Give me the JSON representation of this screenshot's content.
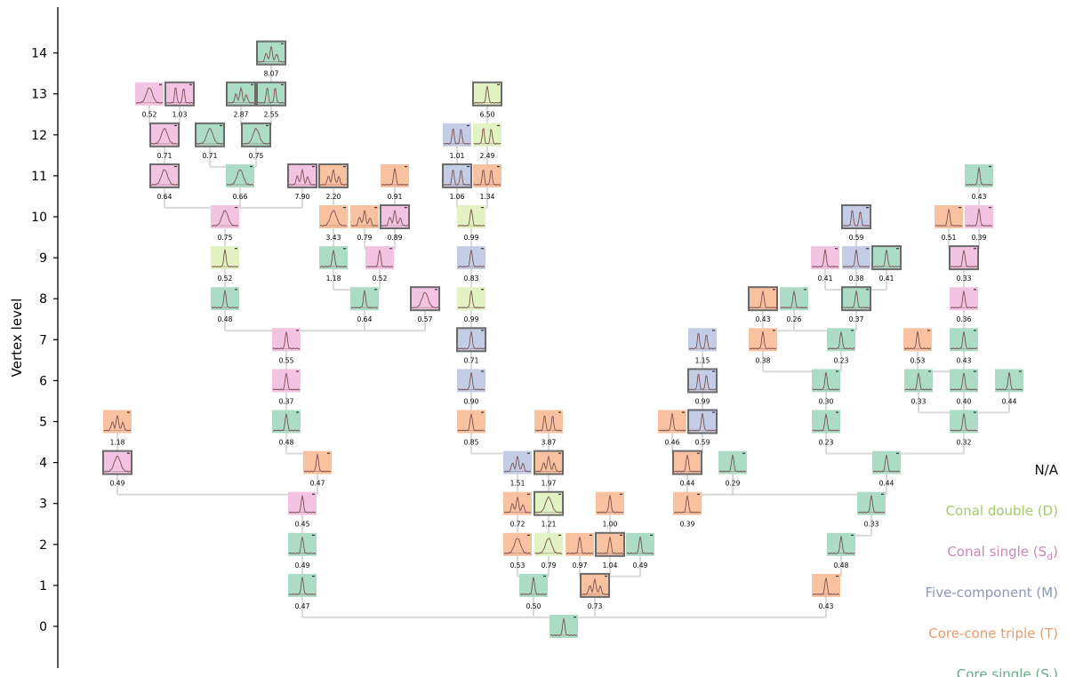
{
  "axis": {
    "ylabel": "Vertex level",
    "ticks": [
      "0",
      "1",
      "2",
      "3",
      "4",
      "5",
      "6",
      "7",
      "8",
      "9",
      "10",
      "11",
      "12",
      "13",
      "14"
    ]
  },
  "legend": [
    {
      "label": "N/A",
      "color": "#111111"
    },
    {
      "label": "Conal double (D)",
      "color": "#a6c96c"
    },
    {
      "label": "Conal single (S",
      "sub": "d",
      "tail": ")",
      "color": "#c987b5"
    },
    {
      "label": "Five-component (M)",
      "color": "#8c98bc"
    },
    {
      "label": "Core-cone triple (T)",
      "color": "#ef9a66"
    },
    {
      "label": "Core single (S",
      "sub": "t",
      "tail": ")",
      "color": "#62ad8c"
    }
  ],
  "colors": {
    "S": "#acdcc6",
    "T": "#f8c2a0",
    "M": "#c5cde6",
    "D": "#e2f2c2",
    "C": "#f3c3e2",
    "line": "#dadada",
    "profile": "#7a5050",
    "frame": "#6a6a6a"
  },
  "nodes": [
    {
      "id": "root",
      "lvl": 0,
      "t": "S"
    },
    {
      "id": "A",
      "lvl": 1,
      "t": "S",
      "val": "0.47",
      "p": "root"
    },
    {
      "id": "B",
      "lvl": 1,
      "t": "S",
      "val": "0.50",
      "p": "root"
    },
    {
      "id": "C",
      "lvl": 1,
      "t": "T",
      "val": "0.73",
      "p": "root",
      "f": 1,
      "shape": "multi"
    },
    {
      "id": "Dn",
      "lvl": 1,
      "t": "T",
      "val": "0.43",
      "p": "root"
    },
    {
      "id": "A2",
      "lvl": 2,
      "t": "S",
      "val": "0.49",
      "p": "A"
    },
    {
      "id": "A3",
      "lvl": 3,
      "t": "C",
      "val": "0.45",
      "p": "A2"
    },
    {
      "id": "A4",
      "lvl": 4,
      "t": "T",
      "val": "0.47",
      "p": "A3"
    },
    {
      "id": "L4",
      "lvl": 4,
      "t": "C",
      "val": "0.49",
      "p": "A3",
      "f": 1,
      "shape": "broad"
    },
    {
      "id": "L5",
      "lvl": 5,
      "t": "T",
      "val": "1.18",
      "p": "L4",
      "shape": "multi"
    },
    {
      "id": "A5",
      "lvl": 5,
      "t": "S",
      "val": "0.48",
      "p": "A4"
    },
    {
      "id": "A6",
      "lvl": 6,
      "t": "C",
      "val": "0.37",
      "p": "A5"
    },
    {
      "id": "A7",
      "lvl": 7,
      "t": "C",
      "val": "0.55",
      "p": "A6"
    },
    {
      "id": "A8",
      "lvl": 8,
      "t": "S",
      "val": "0.48",
      "p": "A7"
    },
    {
      "id": "A9",
      "lvl": 9,
      "t": "D",
      "val": "0.52",
      "p": "A8"
    },
    {
      "id": "A10",
      "lvl": 10,
      "t": "C",
      "val": "0.75",
      "p": "A9",
      "shape": "broad"
    },
    {
      "id": "A11a",
      "lvl": 11,
      "t": "C",
      "val": "0.64",
      "p": "A10",
      "f": 1,
      "shape": "broad"
    },
    {
      "id": "A11b",
      "lvl": 11,
      "t": "S",
      "val": "0.66",
      "p": "A10",
      "shape": "broad"
    },
    {
      "id": "A11c",
      "lvl": 11,
      "t": "C",
      "val": "7.90",
      "p": "A10",
      "f": 1,
      "shape": "multi"
    },
    {
      "id": "A12a",
      "lvl": 12,
      "t": "C",
      "val": "0.71",
      "p": "A11a",
      "f": 1,
      "shape": "broad"
    },
    {
      "id": "A12b",
      "lvl": 12,
      "t": "S",
      "val": "0.71",
      "p": "A11b",
      "f": 1,
      "shape": "broad"
    },
    {
      "id": "A12c",
      "lvl": 12,
      "t": "S",
      "val": "0.75",
      "p": "A11b",
      "f": 1,
      "shape": "broad"
    },
    {
      "id": "A13a",
      "lvl": 13,
      "t": "C",
      "val": "0.52",
      "p": "A12a",
      "shape": "broad"
    },
    {
      "id": "A13b",
      "lvl": 13,
      "t": "C",
      "val": "1.03",
      "p": "A12a",
      "f": 1,
      "shape": "double"
    },
    {
      "id": "A13c",
      "lvl": 13,
      "t": "S",
      "val": "2.87",
      "p": "A12c",
      "f": 1,
      "shape": "multi"
    },
    {
      "id": "A13d",
      "lvl": 13,
      "t": "S",
      "val": "2.55",
      "p": "A12c",
      "f": 1,
      "shape": "double"
    },
    {
      "id": "A14",
      "lvl": 14,
      "t": "S",
      "val": "8.07",
      "p": "A13c",
      "f": 1,
      "shape": "multi"
    },
    {
      "id": "M8a",
      "lvl": 8,
      "t": "S",
      "val": "0.64",
      "p": "A7"
    },
    {
      "id": "M8b",
      "lvl": 8,
      "t": "C",
      "val": "0.57",
      "p": "A7",
      "f": 1,
      "shape": "broad"
    },
    {
      "id": "M9a",
      "lvl": 9,
      "t": "S",
      "val": "1.18",
      "p": "M8a"
    },
    {
      "id": "M9b",
      "lvl": 9,
      "t": "C",
      "val": "0.52",
      "p": "M8a"
    },
    {
      "id": "M10a",
      "lvl": 10,
      "t": "T",
      "val": "3.43",
      "p": "M9a",
      "shape": "broad"
    },
    {
      "id": "M10b",
      "lvl": 10,
      "t": "T",
      "val": "0.79",
      "p": "M9b",
      "shape": "multi"
    },
    {
      "id": "M10c",
      "lvl": 10,
      "t": "C",
      "val": "0.89",
      "p": "M9b",
      "f": 1,
      "shape": "multi"
    },
    {
      "id": "M11a",
      "lvl": 11,
      "t": "T",
      "val": "2.20",
      "p": "M10a",
      "f": 1,
      "shape": "multi"
    },
    {
      "id": "M11b",
      "lvl": 11,
      "t": "T",
      "val": "0.91",
      "p": "M10b"
    },
    {
      "id": "B2a",
      "lvl": 2,
      "t": "T",
      "val": "0.53",
      "p": "B",
      "shape": "broad"
    },
    {
      "id": "B2b",
      "lvl": 2,
      "t": "D",
      "val": "0.79",
      "p": "B",
      "shape": "broad"
    },
    {
      "id": "B3a",
      "lvl": 3,
      "t": "T",
      "val": "0.72",
      "p": "B2a",
      "shape": "multi"
    },
    {
      "id": "B3b",
      "lvl": 3,
      "t": "D",
      "val": "1.21",
      "p": "B2b",
      "f": 1,
      "shape": "broad"
    },
    {
      "id": "B4a",
      "lvl": 4,
      "t": "M",
      "val": "1.51",
      "p": "B3a",
      "shape": "multi"
    },
    {
      "id": "B4b",
      "lvl": 4,
      "t": "T",
      "val": "1.97",
      "p": "B3b",
      "f": 1,
      "shape": "multi"
    },
    {
      "id": "B5a",
      "lvl": 5,
      "t": "T",
      "val": "0.85",
      "p": "B4a"
    },
    {
      "id": "B5b",
      "lvl": 5,
      "t": "T",
      "val": "3.87",
      "p": "B4b",
      "shape": "double"
    },
    {
      "id": "B6",
      "lvl": 6,
      "t": "M",
      "val": "0.90",
      "p": "B5a"
    },
    {
      "id": "B7",
      "lvl": 7,
      "t": "M",
      "val": "0.71",
      "p": "B6",
      "f": 1
    },
    {
      "id": "B8",
      "lvl": 8,
      "t": "D",
      "val": "0.99",
      "p": "B7"
    },
    {
      "id": "B9",
      "lvl": 9,
      "t": "M",
      "val": "0.83",
      "p": "B8"
    },
    {
      "id": "B10",
      "lvl": 10,
      "t": "D",
      "val": "0.99",
      "p": "B9"
    },
    {
      "id": "B11a",
      "lvl": 11,
      "t": "M",
      "val": "1.06",
      "p": "B10",
      "f": 1,
      "shape": "double"
    },
    {
      "id": "B11b",
      "lvl": 11,
      "t": "T",
      "val": "1.34",
      "p": "B10",
      "shape": "double"
    },
    {
      "id": "B12a",
      "lvl": 12,
      "t": "M",
      "val": "1.01",
      "p": "B11a",
      "shape": "double"
    },
    {
      "id": "B12b",
      "lvl": 12,
      "t": "D",
      "val": "2.49",
      "p": "B11b",
      "shape": "double"
    },
    {
      "id": "B13",
      "lvl": 13,
      "t": "D",
      "val": "6.50",
      "p": "B12b",
      "f": 1
    },
    {
      "id": "C2a",
      "lvl": 2,
      "t": "T",
      "val": "0.97",
      "p": "C"
    },
    {
      "id": "C2b",
      "lvl": 2,
      "t": "T",
      "val": "1.04",
      "p": "C",
      "f": 1
    },
    {
      "id": "C2c",
      "lvl": 2,
      "t": "S",
      "val": "0.49",
      "p": "C"
    },
    {
      "id": "C3",
      "lvl": 3,
      "t": "T",
      "val": "1.00",
      "p": "C2b"
    },
    {
      "id": "D2",
      "lvl": 2,
      "t": "S",
      "val": "0.48",
      "p": "Dn"
    },
    {
      "id": "D3",
      "lvl": 3,
      "t": "S",
      "val": "0.33",
      "p": "D2"
    },
    {
      "id": "E3",
      "lvl": 3,
      "t": "T",
      "val": "0.39",
      "p": "D3"
    },
    {
      "id": "E4a",
      "lvl": 4,
      "t": "T",
      "val": "0.44",
      "p": "E3",
      "f": 1
    },
    {
      "id": "E4b",
      "lvl": 4,
      "t": "S",
      "val": "0.29",
      "p": "E3"
    },
    {
      "id": "E5a",
      "lvl": 5,
      "t": "T",
      "val": "0.46",
      "p": "E4a"
    },
    {
      "id": "E5b",
      "lvl": 5,
      "t": "M",
      "val": "0.59",
      "p": "E4a",
      "f": 1
    },
    {
      "id": "E6",
      "lvl": 6,
      "t": "M",
      "val": "0.99",
      "p": "E5b",
      "f": 1,
      "shape": "double"
    },
    {
      "id": "E7",
      "lvl": 7,
      "t": "M",
      "val": "1.15",
      "p": "E6",
      "shape": "double"
    },
    {
      "id": "F4",
      "lvl": 4,
      "t": "S",
      "val": "0.44",
      "p": "D3"
    },
    {
      "id": "F5a",
      "lvl": 5,
      "t": "S",
      "val": "0.23",
      "p": "F4"
    },
    {
      "id": "F5b",
      "lvl": 5,
      "t": "S",
      "val": "0.32",
      "p": "F4"
    },
    {
      "id": "F6",
      "lvl": 6,
      "t": "S",
      "val": "0.30",
      "p": "F5a"
    },
    {
      "id": "F7a",
      "lvl": 7,
      "t": "T",
      "val": "0.38",
      "p": "F6"
    },
    {
      "id": "F7b",
      "lvl": 7,
      "t": "S",
      "val": "0.23",
      "p": "F6"
    },
    {
      "id": "F8a",
      "lvl": 8,
      "t": "T",
      "val": "0.43",
      "p": "F7b",
      "f": 1
    },
    {
      "id": "F8b",
      "lvl": 8,
      "t": "S",
      "val": "0.26",
      "p": "F7b"
    },
    {
      "id": "F8c",
      "lvl": 8,
      "t": "S",
      "val": "0.37",
      "p": "F7b",
      "f": 1
    },
    {
      "id": "F9a",
      "lvl": 9,
      "t": "C",
      "val": "0.41",
      "p": "F8c"
    },
    {
      "id": "F9b",
      "lvl": 9,
      "t": "M",
      "val": "0.38",
      "p": "F8c"
    },
    {
      "id": "F9c",
      "lvl": 9,
      "t": "S",
      "val": "0.41",
      "p": "F8c",
      "f": 1
    },
    {
      "id": "F10",
      "lvl": 10,
      "t": "M",
      "val": "0.59",
      "p": "F9b",
      "f": 1,
      "shape": "double"
    },
    {
      "id": "G6a",
      "lvl": 6,
      "t": "S",
      "val": "0.33",
      "p": "F5b"
    },
    {
      "id": "G6b",
      "lvl": 6,
      "t": "S",
      "val": "0.40",
      "p": "F5b"
    },
    {
      "id": "G6c",
      "lvl": 6,
      "t": "S",
      "val": "0.44",
      "p": "F5b"
    },
    {
      "id": "G7a",
      "lvl": 7,
      "t": "T",
      "val": "0.53",
      "p": "G6b"
    },
    {
      "id": "G7b",
      "lvl": 7,
      "t": "S",
      "val": "0.43",
      "p": "G6b"
    },
    {
      "id": "G8",
      "lvl": 8,
      "t": "C",
      "val": "0.36",
      "p": "G7b"
    },
    {
      "id": "G9",
      "lvl": 9,
      "t": "C",
      "val": "0.33",
      "p": "G8",
      "f": 1
    },
    {
      "id": "G10a",
      "lvl": 10,
      "t": "T",
      "val": "0.51",
      "p": "G9"
    },
    {
      "id": "G10b",
      "lvl": 10,
      "t": "C",
      "val": "0.39",
      "p": "G9"
    },
    {
      "id": "G11",
      "lvl": 11,
      "t": "S",
      "val": "0.43",
      "p": "G10b"
    }
  ]
}
